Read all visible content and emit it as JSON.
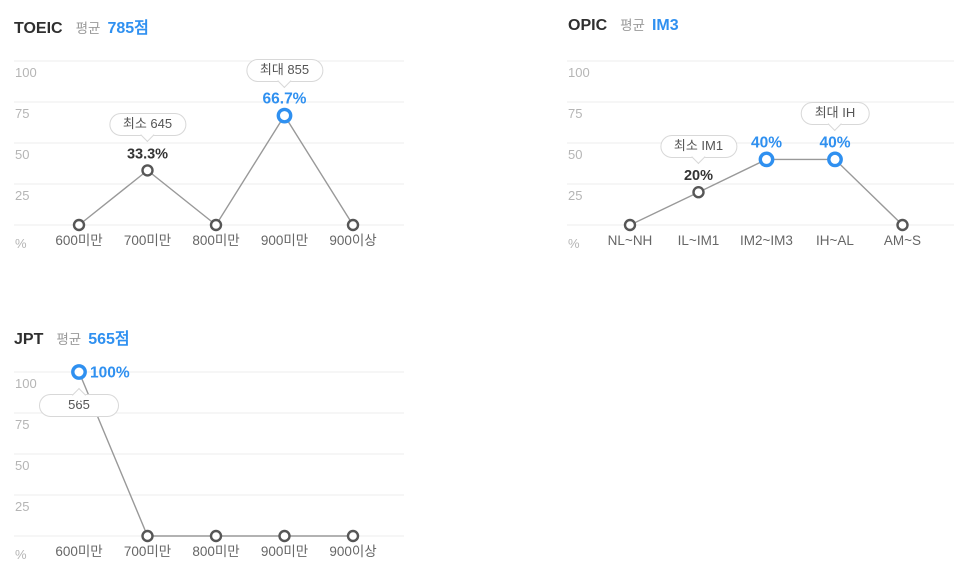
{
  "colors": {
    "accent": "#2f90f0",
    "point_stroke": "#565656",
    "series_line": "#999999",
    "grid": "#ededed",
    "tick_label": "#b5b5b5",
    "x_label": "#666666",
    "dark_value": "#333333",
    "tooltip_border": "#d8d8d8",
    "tooltip_text": "#555555"
  },
  "chart_data": [
    {
      "id": "toeic",
      "type": "line",
      "title": "TOEIC",
      "average_label": "평균",
      "average_value": "785점",
      "ylabel": "%",
      "ylim": [
        0,
        100
      ],
      "yticks": [
        100,
        75,
        50,
        25
      ],
      "grid": true,
      "legend": "none",
      "categories": [
        "600미만",
        "700미만",
        "800미만",
        "900미만",
        "900이상"
      ],
      "values": [
        0,
        33.3,
        0,
        66.7,
        0
      ],
      "point_labels": [
        {
          "index": 1,
          "text": "33.3%",
          "style": "dark",
          "placement": "above"
        },
        {
          "index": 3,
          "text": "66.7%",
          "style": "accent",
          "placement": "above"
        }
      ],
      "highlighted_points": [
        3
      ],
      "tooltips": [
        {
          "index": 1,
          "text": "최소 645",
          "side": "above"
        },
        {
          "index": 3,
          "text": "최대 855",
          "side": "above"
        }
      ]
    },
    {
      "id": "opic",
      "type": "line",
      "title": "OPIC",
      "average_label": "평균",
      "average_value": "IM3",
      "ylabel": "%",
      "ylim": [
        0,
        100
      ],
      "yticks": [
        100,
        75,
        50,
        25
      ],
      "grid": true,
      "legend": "none",
      "categories": [
        "NL~NH",
        "IL~IM1",
        "IM2~IM3",
        "IH~AL",
        "AM~S"
      ],
      "values": [
        0,
        20,
        40,
        40,
        0
      ],
      "point_labels": [
        {
          "index": 1,
          "text": "20%",
          "style": "dark",
          "placement": "above"
        },
        {
          "index": 2,
          "text": "40%",
          "style": "accent",
          "placement": "above"
        },
        {
          "index": 3,
          "text": "40%",
          "style": "accent",
          "placement": "above"
        }
      ],
      "highlighted_points": [
        2,
        3
      ],
      "tooltips": [
        {
          "index": 1,
          "text": "최소 IM1",
          "side": "above"
        },
        {
          "index": 3,
          "text": "최대 IH",
          "side": "above"
        }
      ]
    },
    {
      "id": "jpt",
      "type": "line",
      "title": "JPT",
      "average_label": "평균",
      "average_value": "565점",
      "ylabel": "%",
      "ylim": [
        0,
        100
      ],
      "yticks": [
        100,
        75,
        50,
        25
      ],
      "grid": true,
      "legend": "none",
      "categories": [
        "600미만",
        "700미만",
        "800미만",
        "900미만",
        "900이상"
      ],
      "values": [
        100,
        0,
        0,
        0,
        0
      ],
      "point_labels": [
        {
          "index": 0,
          "text": "100%",
          "style": "accent",
          "placement": "right"
        }
      ],
      "highlighted_points": [
        0
      ],
      "tooltips": [
        {
          "index": 0,
          "text": "565",
          "side": "below"
        }
      ]
    }
  ]
}
